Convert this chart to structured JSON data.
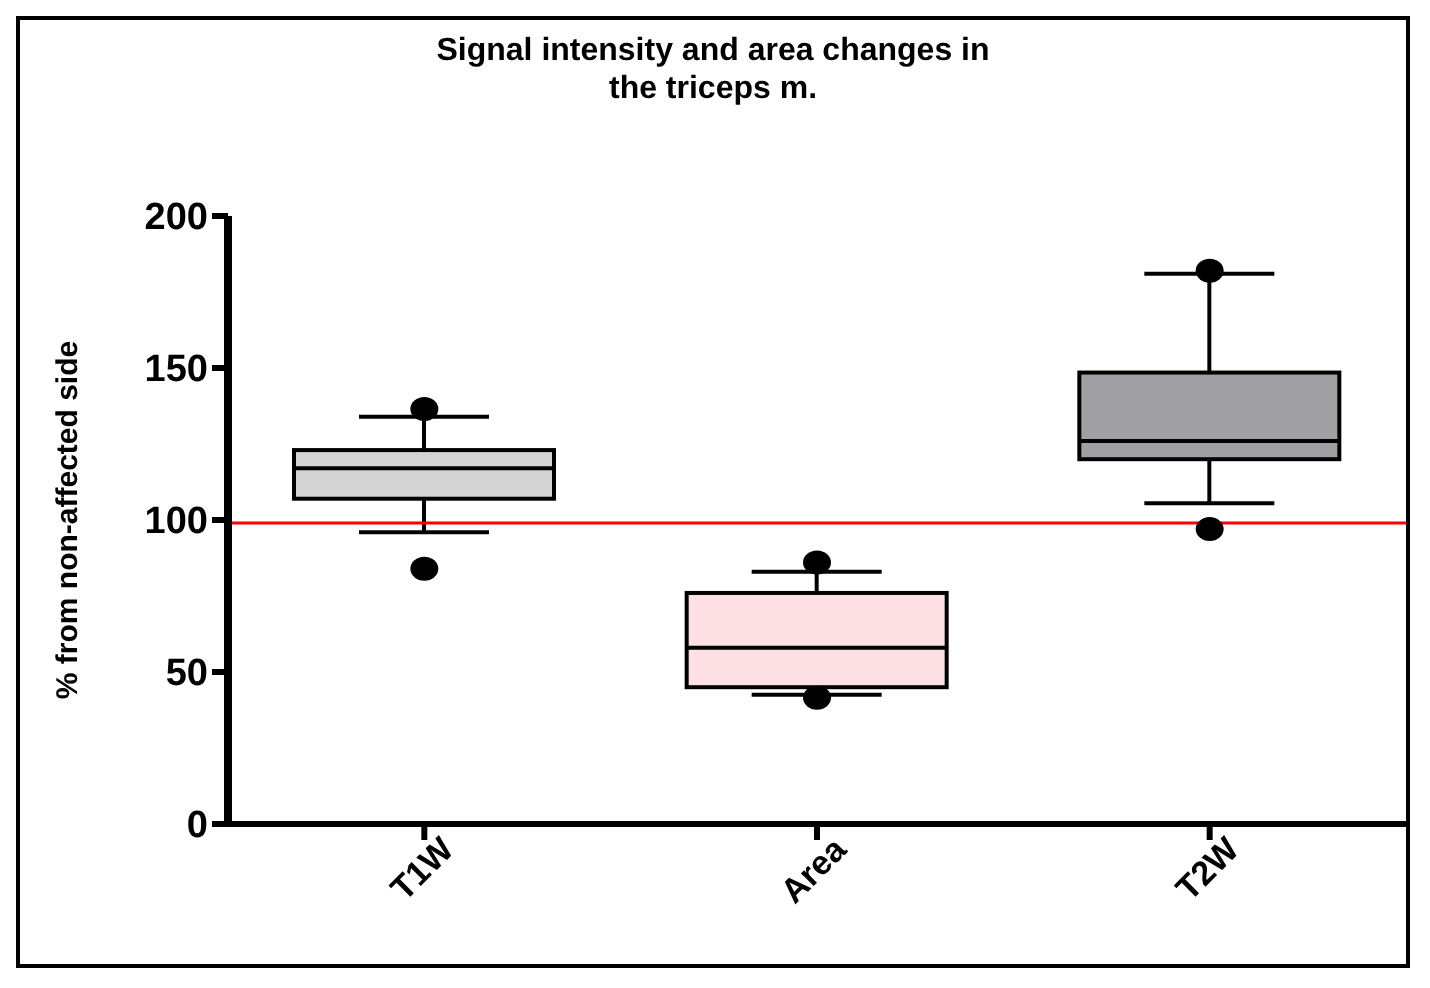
{
  "chart_data": {
    "type": "box",
    "title": "Signal intensity and area changes in\nthe triceps m.",
    "ylabel": "% from non-affected side",
    "categories": [
      "T1W",
      "Area",
      "T2W"
    ],
    "colors": [
      "#d4d4d4",
      "#fde0e3",
      "#a09fa4"
    ],
    "boxes": [
      {
        "low": 96,
        "q1": 107,
        "median": 117,
        "q3": 123,
        "high": 134,
        "outliers": [
          136.5,
          84
        ]
      },
      {
        "low": 42.5,
        "q1": 45,
        "median": 58,
        "q3": 76,
        "high": 83,
        "outliers": [
          86,
          41.5
        ]
      },
      {
        "low": 105.5,
        "q1": 120,
        "median": 126,
        "q3": 148.5,
        "high": 181,
        "outliers": [
          182,
          97
        ]
      }
    ],
    "ylim": [
      0,
      200
    ],
    "yticks": [
      0,
      50,
      100,
      150,
      200
    ],
    "ref_lines": [
      {
        "axis": "y",
        "value": 99,
        "color": "#ff0000"
      }
    ],
    "grid": false,
    "legend": false
  }
}
